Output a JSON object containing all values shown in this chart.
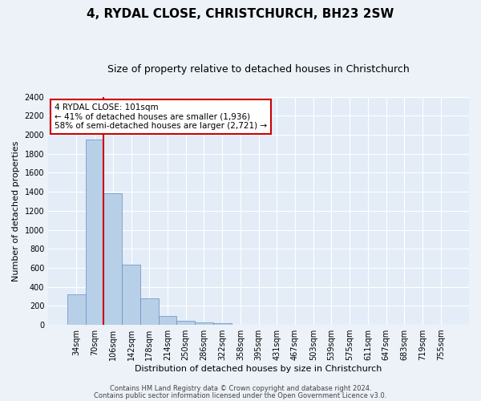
{
  "title": "4, RYDAL CLOSE, CHRISTCHURCH, BH23 2SW",
  "subtitle": "Size of property relative to detached houses in Christchurch",
  "xlabel": "Distribution of detached houses by size in Christchurch",
  "ylabel": "Number of detached properties",
  "bin_labels": [
    "34sqm",
    "70sqm",
    "106sqm",
    "142sqm",
    "178sqm",
    "214sqm",
    "250sqm",
    "286sqm",
    "322sqm",
    "358sqm",
    "395sqm",
    "431sqm",
    "467sqm",
    "503sqm",
    "539sqm",
    "575sqm",
    "611sqm",
    "647sqm",
    "683sqm",
    "719sqm",
    "755sqm"
  ],
  "bar_heights": [
    320,
    1950,
    1380,
    630,
    275,
    95,
    40,
    25,
    20,
    0,
    0,
    0,
    0,
    0,
    0,
    0,
    0,
    0,
    0,
    0,
    0
  ],
  "bar_color": "#b8cfe8",
  "bar_edge_color": "#6090c0",
  "vline_color": "#cc0000",
  "ylim": [
    0,
    2400
  ],
  "yticks": [
    0,
    200,
    400,
    600,
    800,
    1000,
    1200,
    1400,
    1600,
    1800,
    2000,
    2200,
    2400
  ],
  "annotation_title": "4 RYDAL CLOSE: 101sqm",
  "annotation_line1": "← 41% of detached houses are smaller (1,936)",
  "annotation_line2": "58% of semi-detached houses are larger (2,721) →",
  "annotation_box_color": "#ffffff",
  "annotation_box_edge": "#cc0000",
  "footer1": "Contains HM Land Registry data © Crown copyright and database right 2024.",
  "footer2": "Contains public sector information licensed under the Open Government Licence v3.0.",
  "bg_color": "#edf2f9",
  "plot_bg_color": "#e4ecf7",
  "title_fontsize": 11,
  "subtitle_fontsize": 9,
  "xlabel_fontsize": 8,
  "ylabel_fontsize": 8,
  "tick_fontsize": 7,
  "footer_fontsize": 6
}
